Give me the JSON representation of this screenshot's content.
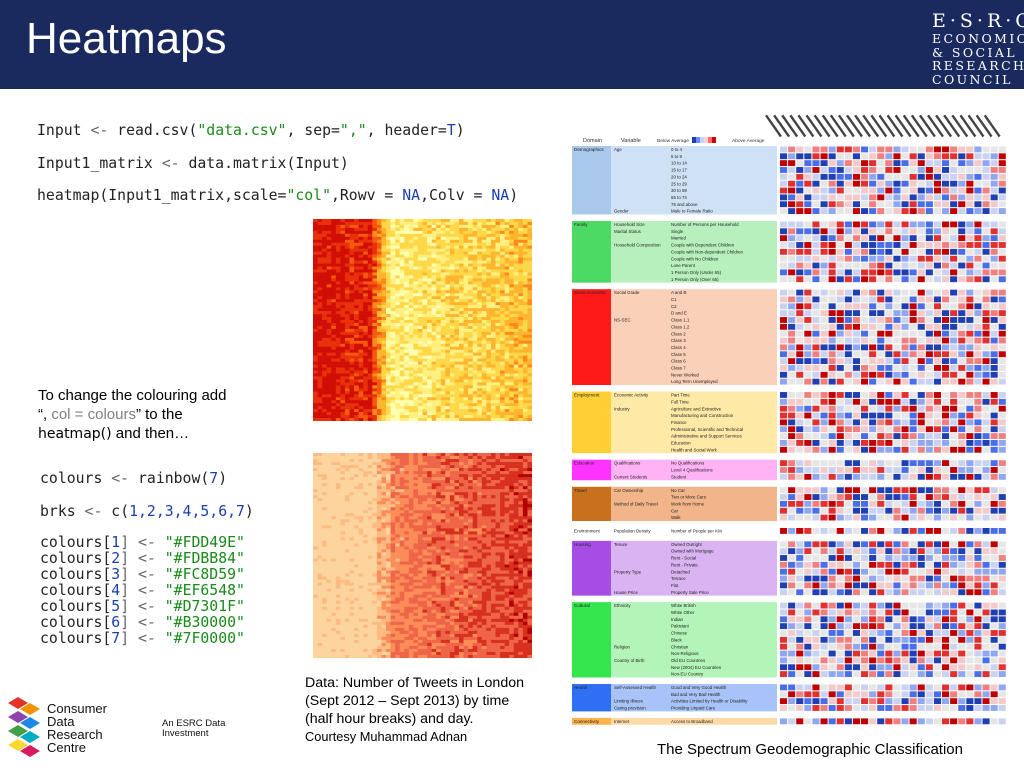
{
  "header": {
    "title": "Heatmaps",
    "logo_line1": "E·S·R·C",
    "logo_line2": "ECONOMIC",
    "logo_line3": "& SOCIAL",
    "logo_line4": "RESEARCH",
    "logo_line5": "COUNCIL"
  },
  "code1": {
    "l1": [
      "Input",
      " <- ",
      "read.csv(",
      "\"data.csv\"",
      ", sep=",
      "\",\"",
      ", header=",
      "T",
      ")"
    ],
    "l2": [
      "Input1_matrix",
      " <- ",
      "data.matrix(Input)"
    ],
    "l3": [
      "heatmap(Input1_matrix,scale=",
      "\"col\"",
      ",Rowv = ",
      "NA",
      ",Colv = ",
      "NA",
      ")"
    ]
  },
  "note": {
    "line1": "To change the colouring add",
    "line2a": "“, ",
    "line2b": "col = colours",
    "line2c": "” to the",
    "line3a": "heatmap()",
    "line3b": " and then…"
  },
  "code2": {
    "l1": [
      "colours",
      " <- ",
      "rainbow(",
      "7",
      ")"
    ],
    "l2": [
      "brks",
      " <- ",
      "c(",
      "1,2,3,4,5,6,7",
      ")"
    ],
    "colour_lines": [
      {
        "lhs": "colours[",
        "idx": "1",
        "rhs": "] <- ",
        "val": "\"#FDD49E\""
      },
      {
        "lhs": "colours[",
        "idx": "2",
        "rhs": "] <- ",
        "val": "\"#FDBB84\""
      },
      {
        "lhs": "colours[",
        "idx": "3",
        "rhs": "] <- ",
        "val": "\"#FC8D59\""
      },
      {
        "lhs": "colours[",
        "idx": "4",
        "rhs": "] <- ",
        "val": "\"#EF6548\""
      },
      {
        "lhs": "colours[",
        "idx": "5",
        "rhs": "] <- ",
        "val": "\"#D7301F\""
      },
      {
        "lhs": "colours[",
        "idx": "6",
        "rhs": "] <- ",
        "val": "\"#B30000\""
      },
      {
        "lhs": "colours[",
        "idx": "7",
        "rhs": "] <- ",
        "val": "\"#7F0000\""
      }
    ]
  },
  "caption": {
    "line1": "Data: Number of Tweets in London",
    "line2": "(Sept 2012 – Sept 2013) by time",
    "line3": "(half hour breaks) and day.",
    "credit": "Courtesy Muhammad Adnan"
  },
  "spectrum_caption": "The Spectrum Geodemographic Classification",
  "cdrc": {
    "line1": "Consumer",
    "line2": "Data",
    "line3": "Research",
    "line4": "Centre",
    "inv1": "An ESRC Data",
    "inv2": "Investment"
  },
  "spectrum": {
    "headers": {
      "domain": "Domain",
      "variable": "Variable",
      "below": "Below Average",
      "above": "Above Average"
    },
    "domains": [
      {
        "name": "Demographics",
        "color": "#a9c8ea",
        "light": "#cfe1f5",
        "rows": [
          {
            "v": "Age",
            "s": "0 to 4"
          },
          {
            "v": "",
            "s": "5 to 9"
          },
          {
            "v": "",
            "s": "10 to 14"
          },
          {
            "v": "",
            "s": "15 to 17"
          },
          {
            "v": "",
            "s": "20 to 24"
          },
          {
            "v": "",
            "s": "25 to 29"
          },
          {
            "v": "",
            "s": "30 to 59"
          },
          {
            "v": "",
            "s": "65 to 74"
          },
          {
            "v": "",
            "s": "75 and above"
          },
          {
            "v": "Gender",
            "s": "Male to Female Ratio"
          }
        ]
      },
      {
        "name": "Family",
        "color": "#4cd964",
        "light": "#b7f0bd",
        "rows": [
          {
            "v": "Household Size",
            "s": "Number of Persons per Household"
          },
          {
            "v": "Marital Status",
            "s": "Single"
          },
          {
            "v": "",
            "s": "Married"
          },
          {
            "v": "Household Composition",
            "s": "Couple with Dependent Children"
          },
          {
            "v": "",
            "s": "Couple with Non-dependent Children"
          },
          {
            "v": "",
            "s": "Couple with No Children"
          },
          {
            "v": "",
            "s": "Lone Parent"
          },
          {
            "v": "",
            "s": "1 Person Only (Under 65)"
          },
          {
            "v": "",
            "s": "1 Person Only (Over 65)"
          }
        ]
      },
      {
        "name": "Socio-economic",
        "color": "#ff1a1a",
        "light": "#fbd0b8",
        "rows": [
          {
            "v": "Social Grade",
            "s": "A and B"
          },
          {
            "v": "",
            "s": "C1"
          },
          {
            "v": "",
            "s": "C2"
          },
          {
            "v": "",
            "s": "D and E"
          },
          {
            "v": "NS-SEC",
            "s": "Class 1.1"
          },
          {
            "v": "",
            "s": "Class 1.2"
          },
          {
            "v": "",
            "s": "Class 2"
          },
          {
            "v": "",
            "s": "Class 3"
          },
          {
            "v": "",
            "s": "Class 4"
          },
          {
            "v": "",
            "s": "Class 5"
          },
          {
            "v": "",
            "s": "Class 6"
          },
          {
            "v": "",
            "s": "Class 7"
          },
          {
            "v": "",
            "s": "Never Worked"
          },
          {
            "v": "",
            "s": "Long Term Unemployed"
          }
        ]
      },
      {
        "name": "Employment",
        "color": "#ffcf33",
        "light": "#ffe9a6",
        "rows": [
          {
            "v": "Economic Activity",
            "s": "Part Time"
          },
          {
            "v": "",
            "s": "Full Time"
          },
          {
            "v": "Industry",
            "s": "Agriculture and Extractive"
          },
          {
            "v": "",
            "s": "Manufacturing and Construction"
          },
          {
            "v": "",
            "s": "Finance"
          },
          {
            "v": "",
            "s": "Professional, Scientific and Technical"
          },
          {
            "v": "",
            "s": "Administrative and Support Services"
          },
          {
            "v": "",
            "s": "Education"
          },
          {
            "v": "",
            "s": "Health and Social Work"
          }
        ]
      },
      {
        "name": "Education",
        "color": "#ff33ff",
        "light": "#ffb3f5",
        "rows": [
          {
            "v": "Qualifications",
            "s": "No Qualifications"
          },
          {
            "v": "",
            "s": "Level 4 Qualifications"
          },
          {
            "v": "Current Students",
            "s": "Student"
          }
        ]
      },
      {
        "name": "Travel",
        "color": "#c8701e",
        "light": "#f2b58a",
        "rows": [
          {
            "v": "Car Ownership",
            "s": "No Car"
          },
          {
            "v": "",
            "s": "Two or More Cars"
          },
          {
            "v": "Method of Daily Travel",
            "s": "Work from Home"
          },
          {
            "v": "",
            "s": "Car"
          },
          {
            "v": "",
            "s": "Walk"
          }
        ]
      },
      {
        "name": "Environment",
        "color": "#ffffff",
        "light": "#ffffff",
        "rows": [
          {
            "v": "Population Density",
            "s": "Number of People per KM"
          }
        ]
      },
      {
        "name": "Housing",
        "color": "#a64de6",
        "light": "#d9b3f2",
        "rows": [
          {
            "v": "Tenure",
            "s": "Owned Outright"
          },
          {
            "v": "",
            "s": "Owned with Mortgage"
          },
          {
            "v": "",
            "s": "Rent - Social"
          },
          {
            "v": "",
            "s": "Rent - Private"
          },
          {
            "v": "Property Type",
            "s": "Detached"
          },
          {
            "v": "",
            "s": "Terrace"
          },
          {
            "v": "",
            "s": "Flat"
          },
          {
            "v": "House Price",
            "s": "Property Sale Price"
          }
        ]
      },
      {
        "name": "Cultural",
        "color": "#33e64d",
        "light": "#b3f5b8",
        "rows": [
          {
            "v": "Ethnicity",
            "s": "White British"
          },
          {
            "v": "",
            "s": "White Other"
          },
          {
            "v": "",
            "s": "Indian"
          },
          {
            "v": "",
            "s": "Pakistani"
          },
          {
            "v": "",
            "s": "Chinese"
          },
          {
            "v": "",
            "s": "Black"
          },
          {
            "v": "Religion",
            "s": "Christian"
          },
          {
            "v": "",
            "s": "Non-Religious"
          },
          {
            "v": "Country of Birth",
            "s": "Old EU Countries"
          },
          {
            "v": "",
            "s": "New (2004) EU Countries"
          },
          {
            "v": "",
            "s": "Non-EU Country"
          }
        ]
      },
      {
        "name": "Health",
        "color": "#2f6ff2",
        "light": "#a8c3f7",
        "rows": [
          {
            "v": "Self-Assessed Health",
            "s": "Good and Very Good Health"
          },
          {
            "v": "",
            "s": "Bad and Very Bad Health"
          },
          {
            "v": "Limiting Illness",
            "s": "Activities Limited by Health or Disability"
          },
          {
            "v": "Caring provision",
            "s": "Providing Unpaid Care"
          }
        ]
      },
      {
        "name": "Connectivity",
        "color": "#ffb34d",
        "light": "#ffd9a6",
        "rows": [
          {
            "v": "Internet",
            "s": "Access to Broadband"
          }
        ]
      }
    ]
  }
}
